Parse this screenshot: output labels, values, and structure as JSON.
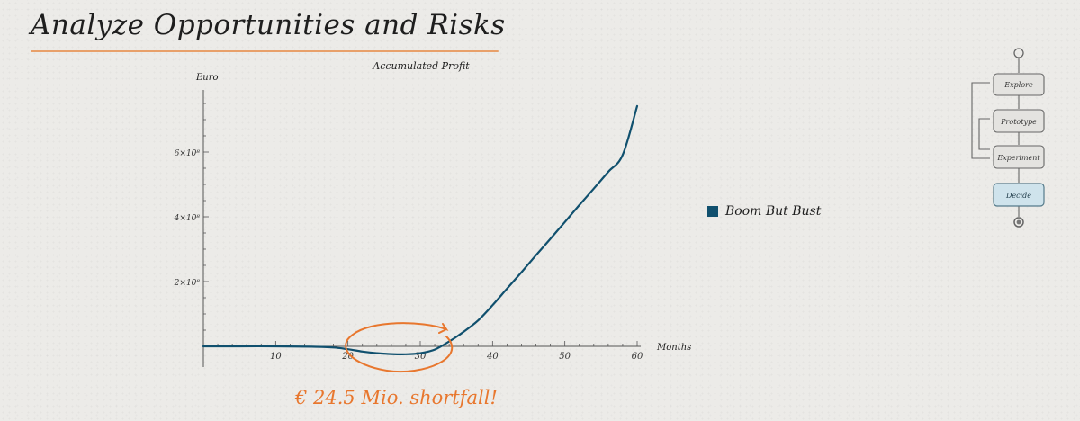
{
  "header": {
    "title": "Analyze Opportunities and Risks"
  },
  "annotation": {
    "text": "€ 24.5 Mio. shortfall!"
  },
  "process": {
    "steps": [
      "Explore",
      "Prototype",
      "Experiment",
      "Decide"
    ],
    "active_step": "Decide"
  },
  "colors": {
    "series": "#10506e",
    "accent": "#e8772e",
    "title_rule": "#e8a06a",
    "active_step": "#cfe3ec"
  },
  "chart_data": {
    "type": "line",
    "title": "Accumulated Profit",
    "xlabel": "Months",
    "ylabel": "Euro",
    "xlim": [
      0,
      60
    ],
    "ylim": [
      -30000000,
      780000000
    ],
    "x_ticks": [
      10,
      20,
      30,
      40,
      50,
      60
    ],
    "x_tick_labels": [
      "10",
      "20",
      "30",
      "40",
      "50",
      "60"
    ],
    "y_ticks": [
      200000000,
      400000000,
      600000000
    ],
    "y_tick_labels": [
      "2×10⁸",
      "4×10⁸",
      "6×10⁸"
    ],
    "legend_position": "right",
    "grid": false,
    "series": [
      {
        "name": "Boom But Bust",
        "x": [
          0,
          5,
          10,
          15,
          18,
          20,
          22,
          24,
          26,
          28,
          30,
          32,
          34,
          36,
          38,
          40,
          42,
          44,
          46,
          48,
          50,
          52,
          54,
          56,
          58,
          60
        ],
        "values": [
          0,
          0,
          0,
          -1000000,
          -3500000,
          -9000000,
          -16000000,
          -21000000,
          -24000000,
          -24500000,
          -21000000,
          -10000000,
          15000000,
          45000000,
          80000000,
          127000000,
          178000000,
          229000000,
          281000000,
          332000000,
          384000000,
          436000000,
          487000000,
          539000000,
          591000000,
          742000000
        ]
      }
    ]
  }
}
